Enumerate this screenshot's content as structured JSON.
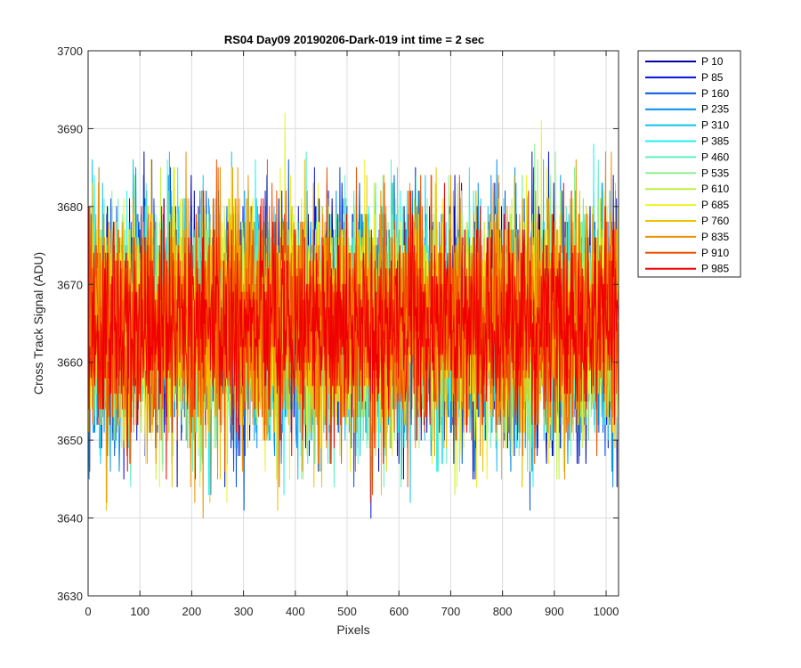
{
  "chart_data": {
    "type": "line",
    "title": "RS04 Day09 20190206-Dark-019 int time = 2 sec",
    "xlabel": "Pixels",
    "ylabel": "Cross Track Signal (ADU)",
    "xlim": [
      0,
      1024
    ],
    "ylim": [
      3630,
      3700
    ],
    "xticks": [
      0,
      100,
      200,
      300,
      400,
      500,
      600,
      700,
      800,
      900,
      1000
    ],
    "yticks": [
      3630,
      3640,
      3650,
      3660,
      3670,
      3680,
      3690,
      3700
    ],
    "grid": true,
    "legend_position": "outside-top-right",
    "n_points": 1024,
    "series": [
      {
        "name": "P 10",
        "color": "#0000a8",
        "mean": 3665,
        "std": 7.5,
        "min": 3644,
        "max": 3687
      },
      {
        "name": "P 85",
        "color": "#0010d8",
        "mean": 3665,
        "std": 7.5,
        "min": 3636,
        "max": 3687
      },
      {
        "name": "P 160",
        "color": "#0050e0",
        "mean": 3665,
        "std": 7.5,
        "min": 3641,
        "max": 3688
      },
      {
        "name": "P 235",
        "color": "#0090f0",
        "mean": 3665,
        "std": 7.5,
        "min": 3641,
        "max": 3689
      },
      {
        "name": "P 310",
        "color": "#10c0f0",
        "mean": 3665,
        "std": 7.5,
        "min": 3640,
        "max": 3688
      },
      {
        "name": "P 385",
        "color": "#20f0f0",
        "mean": 3665,
        "std": 7.5,
        "min": 3635,
        "max": 3688
      },
      {
        "name": "P 460",
        "color": "#60f0c0",
        "mean": 3665,
        "std": 7.5,
        "min": 3644,
        "max": 3688
      },
      {
        "name": "P 535",
        "color": "#90f090",
        "mean": 3665,
        "std": 7.5,
        "min": 3637,
        "max": 3692
      },
      {
        "name": "P 610",
        "color": "#c0f040",
        "mean": 3665,
        "std": 7.5,
        "min": 3643,
        "max": 3692
      },
      {
        "name": "P 685",
        "color": "#f0f020",
        "mean": 3665,
        "std": 7.5,
        "min": 3641,
        "max": 3693
      },
      {
        "name": "P 760",
        "color": "#f0c000",
        "mean": 3665,
        "std": 7.5,
        "min": 3632,
        "max": 3687
      },
      {
        "name": "P 835",
        "color": "#f09000",
        "mean": 3665,
        "std": 7.5,
        "min": 3639,
        "max": 3687
      },
      {
        "name": "P 910",
        "color": "#f05000",
        "mean": 3665,
        "std": 7.5,
        "min": 3641,
        "max": 3686
      },
      {
        "name": "P 985",
        "color": "#f00000",
        "mean": 3665,
        "std": 6.5,
        "min": 3642,
        "max": 3685
      }
    ]
  }
}
